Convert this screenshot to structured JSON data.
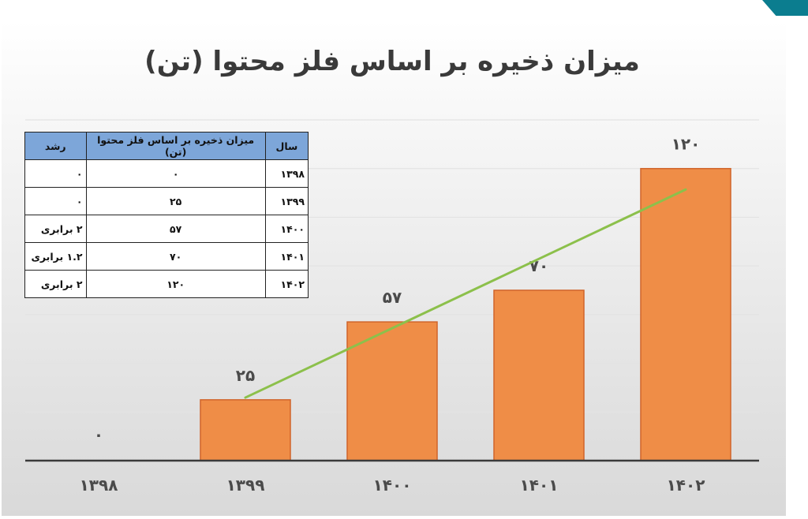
{
  "slide": {
    "title": "میزان ذخیره بر اساس فلز محتوا (تن)",
    "accent_color": "#0b7d8f"
  },
  "table": {
    "headers": [
      "سال",
      "میزان ذخیره بر اساس فلز محتوا (تن)",
      "رشد"
    ],
    "rows": [
      [
        "۱۳۹۸",
        "۰",
        "۰"
      ],
      [
        "۱۳۹۹",
        "۲۵",
        "۰"
      ],
      [
        "۱۴۰۰",
        "۵۷",
        "۲ برابری"
      ],
      [
        "۱۴۰۱",
        "۷۰",
        "۱.۲ برابری"
      ],
      [
        "۱۴۰۲",
        "۱۲۰",
        "۲ برابری"
      ]
    ]
  },
  "chart_data": {
    "type": "bar",
    "title": "میزان ذخیره بر اساس فلز محتوا (تن)",
    "categories": [
      "۱۳۹۸",
      "۱۳۹۹",
      "۱۴۰۰",
      "۱۴۰۱",
      "۱۴۰۲"
    ],
    "values": [
      0,
      25,
      57,
      70,
      120
    ],
    "value_labels": [
      "۰",
      "۲۵",
      "۵۷",
      "۷۰",
      "۱۲۰"
    ],
    "trendline": {
      "type": "linear",
      "color": "#8cc04b"
    },
    "bar_color": "#ef8d47",
    "bar_edge_color": "#d0642a",
    "ylim": [
      0,
      140
    ],
    "grid": true,
    "legend": "none"
  }
}
